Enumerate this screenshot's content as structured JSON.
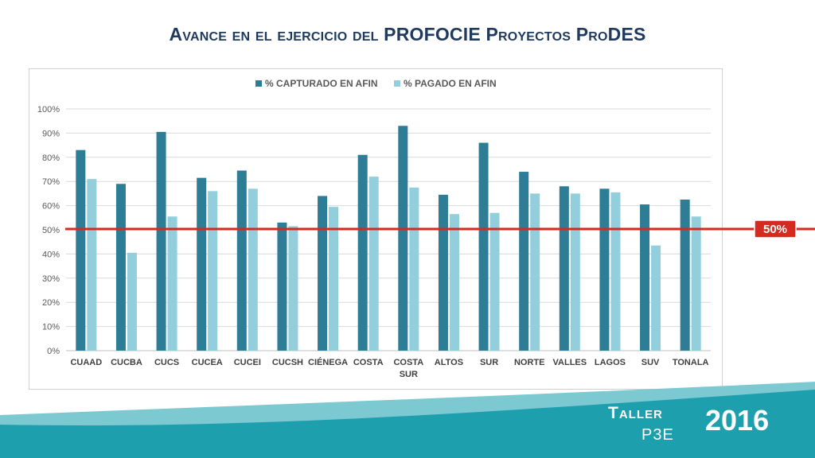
{
  "slide": {
    "title": "Avance en el ejercicio del PROFOCIE Proyectos ProDES"
  },
  "branding": {
    "taller": "Taller",
    "p3e": "P3E",
    "year": "2016"
  },
  "colors": {
    "series1": "#2e7d96",
    "series2": "#93cedd",
    "reference": "#d42a1f",
    "title": "#1f3a5c",
    "band": "#1d9fae"
  },
  "chart_data": {
    "type": "bar",
    "categories": [
      "CUAAD",
      "CUCBA",
      "CUCS",
      "CUCEA",
      "CUCEI",
      "CUCSH",
      "CIÉNEGA",
      "COSTA",
      "COSTA SUR",
      "ALTOS",
      "SUR",
      "NORTE",
      "VALLES",
      "LAGOS",
      "SUV",
      "TONALA"
    ],
    "series": [
      {
        "name": "%  CAPTURADO EN AFIN",
        "values": [
          83,
          69,
          90.5,
          71.5,
          74.5,
          53,
          64,
          81,
          93,
          64.5,
          86,
          74,
          68,
          67,
          60.5,
          62.5
        ]
      },
      {
        "name": "% PAGADO EN AFIN",
        "values": [
          71,
          40.5,
          55.5,
          66,
          67,
          51.5,
          59.5,
          72,
          67.5,
          56.5,
          57,
          65,
          65,
          65.5,
          43.5,
          55.5
        ]
      }
    ],
    "yticks": [
      "0%",
      "10%",
      "20%",
      "30%",
      "40%",
      "50%",
      "60%",
      "70%",
      "80%",
      "90%",
      "100%"
    ],
    "ylim": [
      0,
      100
    ],
    "grid": true,
    "legend": "top-center",
    "reference_line": {
      "value": 50,
      "label": "50%"
    }
  }
}
